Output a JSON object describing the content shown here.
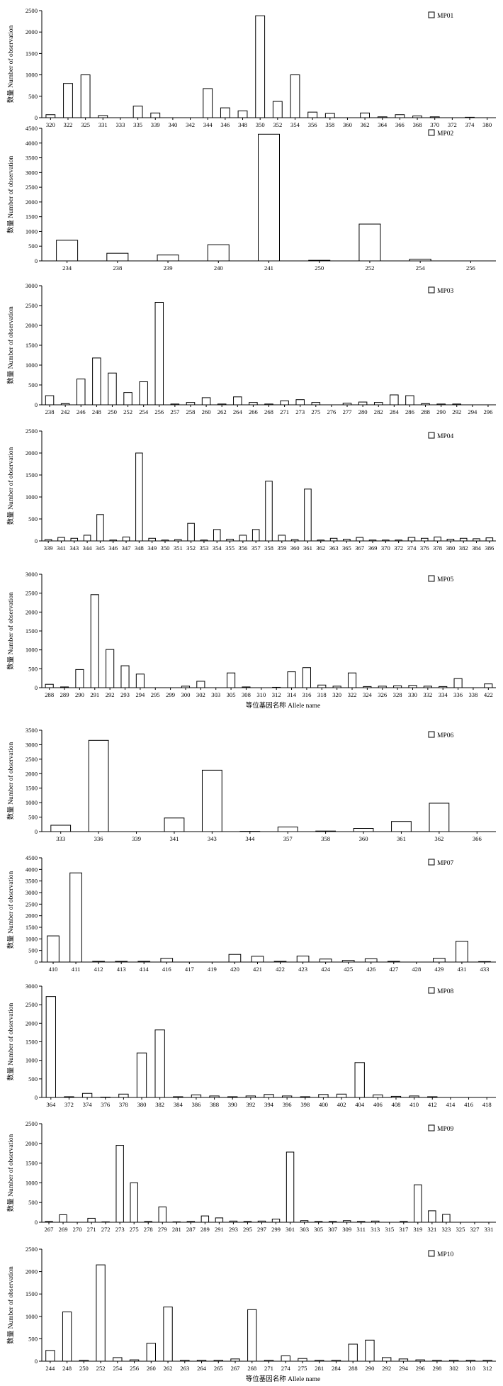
{
  "chart_data": [
    {
      "type": "bar",
      "legend": "MP01",
      "ylabel": "数量 Number of observation",
      "xlabel": "",
      "ylim": [
        0,
        2500
      ],
      "yticks": [
        0,
        500,
        1000,
        1500,
        2000,
        2500
      ],
      "categories": [
        "320",
        "322",
        "325",
        "331",
        "333",
        "335",
        "339",
        "340",
        "342",
        "344",
        "346",
        "348",
        "350",
        "352",
        "354",
        "356",
        "358",
        "360",
        "362",
        "364",
        "366",
        "368",
        "370",
        "372",
        "374",
        "380"
      ],
      "values": [
        70,
        800,
        1000,
        50,
        0,
        270,
        110,
        0,
        0,
        680,
        230,
        160,
        2380,
        380,
        1000,
        130,
        100,
        0,
        110,
        20,
        70,
        40,
        20,
        0,
        10,
        0
      ]
    },
    {
      "type": "bar",
      "legend": "MP02",
      "ylabel": "数量 Number of observation",
      "xlabel": "",
      "ylim": [
        0,
        4500
      ],
      "yticks": [
        0,
        500,
        1000,
        1500,
        2000,
        2500,
        3000,
        3500,
        4000,
        4500
      ],
      "categories": [
        "234",
        "238",
        "239",
        "240",
        "241",
        "250",
        "252",
        "254",
        "256"
      ],
      "values": [
        700,
        260,
        200,
        550,
        4300,
        20,
        1250,
        60,
        0
      ]
    },
    {
      "type": "bar",
      "legend": "MP03",
      "ylabel": "数量 Number of observation",
      "xlabel": "",
      "ylim": [
        0,
        3000
      ],
      "yticks": [
        0,
        500,
        1000,
        1500,
        2000,
        2500,
        3000
      ],
      "categories": [
        "238",
        "242",
        "246",
        "248",
        "250",
        "252",
        "254",
        "256",
        "257",
        "258",
        "260",
        "262",
        "264",
        "266",
        "268",
        "271",
        "273",
        "275",
        "276",
        "277",
        "280",
        "282",
        "284",
        "286",
        "288",
        "290",
        "292",
        "294",
        "296"
      ],
      "values": [
        230,
        30,
        650,
        1180,
        800,
        310,
        580,
        2580,
        20,
        60,
        180,
        20,
        200,
        60,
        20,
        100,
        130,
        60,
        0,
        40,
        70,
        60,
        250,
        230,
        30,
        20,
        20,
        0,
        0
      ]
    },
    {
      "type": "bar",
      "legend": "MP04",
      "ylabel": "数量 Number of observation",
      "xlabel": "",
      "ylim": [
        0,
        2500
      ],
      "yticks": [
        0,
        500,
        1000,
        1500,
        2000,
        2500
      ],
      "categories": [
        "339",
        "341",
        "343",
        "344",
        "345",
        "346",
        "347",
        "348",
        "349",
        "350",
        "351",
        "352",
        "353",
        "354",
        "355",
        "356",
        "357",
        "358",
        "359",
        "360",
        "361",
        "362",
        "363",
        "365",
        "367",
        "369",
        "370",
        "372",
        "374",
        "376",
        "378",
        "380",
        "382",
        "384",
        "386"
      ],
      "values": [
        30,
        80,
        60,
        130,
        600,
        20,
        90,
        2000,
        60,
        20,
        30,
        400,
        20,
        260,
        40,
        130,
        260,
        1360,
        130,
        30,
        1180,
        20,
        60,
        40,
        80,
        20,
        20,
        20,
        80,
        60,
        90,
        40,
        60,
        50,
        70
      ]
    },
    {
      "type": "bar",
      "legend": "MP05",
      "ylabel": "数量 Number of observation",
      "xlabel": "等位基因名称 Allele name",
      "ylim": [
        0,
        3000
      ],
      "yticks": [
        0,
        500,
        1000,
        1500,
        2000,
        2500,
        3000
      ],
      "categories": [
        "288",
        "289",
        "290",
        "291",
        "292",
        "293",
        "294",
        "295",
        "299",
        "300",
        "302",
        "303",
        "305",
        "308",
        "310",
        "312",
        "314",
        "316",
        "318",
        "320",
        "322",
        "324",
        "326",
        "328",
        "330",
        "332",
        "334",
        "336",
        "338",
        "422"
      ],
      "values": [
        90,
        20,
        480,
        2460,
        1010,
        580,
        360,
        0,
        0,
        40,
        170,
        0,
        390,
        20,
        0,
        10,
        420,
        530,
        70,
        40,
        390,
        30,
        40,
        50,
        60,
        40,
        30,
        240,
        0,
        100
      ]
    },
    {
      "type": "bar",
      "legend": "MP06",
      "ylabel": "数量 Number of observation",
      "xlabel": "",
      "ylim": [
        0,
        3500
      ],
      "yticks": [
        0,
        500,
        1000,
        1500,
        2000,
        2500,
        3000,
        3500
      ],
      "categories": [
        "333",
        "336",
        "339",
        "341",
        "343",
        "344",
        "357",
        "358",
        "360",
        "361",
        "362",
        "366"
      ],
      "values": [
        220,
        3150,
        0,
        470,
        2120,
        10,
        160,
        20,
        110,
        350,
        980,
        0
      ]
    },
    {
      "type": "bar",
      "legend": "MP07",
      "ylabel": "数量 Number of observation",
      "xlabel": "",
      "ylim": [
        0,
        4500
      ],
      "yticks": [
        0,
        500,
        1000,
        1500,
        2000,
        2500,
        3000,
        3500,
        4000,
        4500
      ],
      "categories": [
        "410",
        "411",
        "412",
        "413",
        "414",
        "416",
        "417",
        "419",
        "420",
        "421",
        "422",
        "423",
        "424",
        "425",
        "426",
        "427",
        "428",
        "429",
        "431",
        "433"
      ],
      "values": [
        1130,
        3850,
        30,
        30,
        30,
        160,
        0,
        0,
        330,
        250,
        30,
        260,
        130,
        70,
        140,
        30,
        0,
        160,
        900,
        20
      ]
    },
    {
      "type": "bar",
      "legend": "MP08",
      "ylabel": "数量 Number of observation",
      "xlabel": "",
      "ylim": [
        0,
        3000
      ],
      "yticks": [
        0,
        500,
        1000,
        1500,
        2000,
        2500,
        3000
      ],
      "categories": [
        "364",
        "372",
        "374",
        "376",
        "378",
        "380",
        "382",
        "384",
        "386",
        "388",
        "390",
        "392",
        "394",
        "396",
        "398",
        "400",
        "402",
        "404",
        "406",
        "408",
        "410",
        "412",
        "414",
        "416",
        "418"
      ],
      "values": [
        2720,
        20,
        110,
        10,
        90,
        1200,
        1820,
        20,
        70,
        40,
        20,
        40,
        80,
        40,
        20,
        80,
        90,
        940,
        70,
        30,
        40,
        20,
        0,
        0,
        0
      ]
    },
    {
      "type": "bar",
      "legend": "MP09",
      "ylabel": "数量 Number of observation",
      "xlabel": "",
      "ylim": [
        0,
        2500
      ],
      "yticks": [
        0,
        500,
        1000,
        1500,
        2000,
        2500
      ],
      "categories": [
        "267",
        "269",
        "270",
        "271",
        "272",
        "273",
        "275",
        "278",
        "279",
        "281",
        "287",
        "289",
        "291",
        "293",
        "295",
        "297",
        "299",
        "301",
        "303",
        "305",
        "307",
        "309",
        "311",
        "313",
        "315",
        "317",
        "319",
        "321",
        "323",
        "325",
        "327",
        "331"
      ],
      "values": [
        20,
        190,
        0,
        100,
        10,
        1950,
        1000,
        20,
        390,
        10,
        20,
        160,
        110,
        30,
        20,
        30,
        80,
        1780,
        40,
        20,
        20,
        40,
        20,
        30,
        0,
        20,
        950,
        290,
        200,
        0,
        0,
        0
      ]
    },
    {
      "type": "bar",
      "legend": "MP10",
      "ylabel": "数量 Number of observation",
      "xlabel": "等位基因名称 Allele name",
      "ylim": [
        0,
        2500
      ],
      "yticks": [
        0,
        500,
        1000,
        1500,
        2000,
        2500
      ],
      "categories": [
        "244",
        "248",
        "250",
        "252",
        "254",
        "256",
        "260",
        "262",
        "263",
        "264",
        "265",
        "267",
        "268",
        "271",
        "274",
        "275",
        "281",
        "284",
        "288",
        "290",
        "292",
        "294",
        "296",
        "298",
        "302",
        "310",
        "312"
      ],
      "values": [
        240,
        1100,
        20,
        2150,
        80,
        30,
        400,
        1210,
        20,
        20,
        20,
        50,
        1150,
        20,
        120,
        60,
        20,
        20,
        380,
        470,
        80,
        50,
        30,
        20,
        20,
        20,
        20
      ]
    }
  ]
}
